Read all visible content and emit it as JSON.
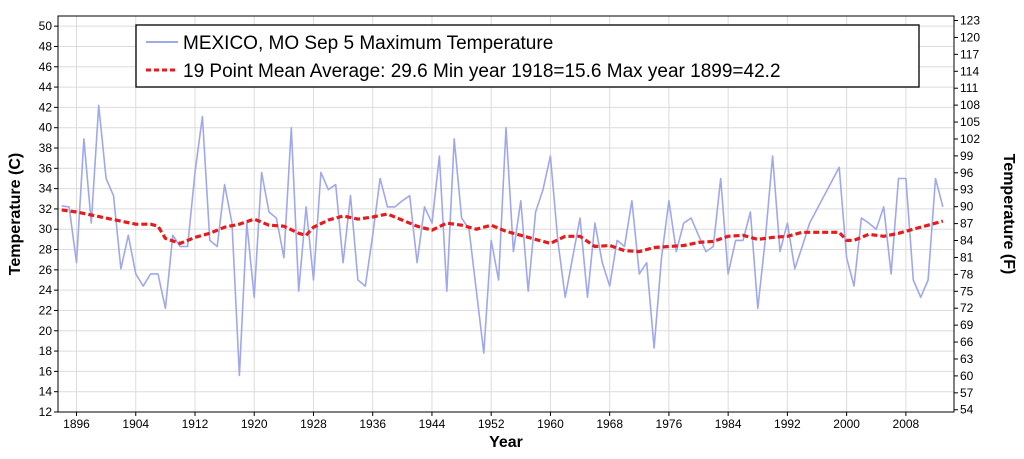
{
  "chart_data": {
    "type": "line",
    "legend_position": "top",
    "legend": {
      "raw_label": "MEXICO, MO  Sep 5  Maximum Temperature",
      "mean_label": "19 Point Mean  Average: 29.6  Min year 1918=15.6  Max year 1899=42.2"
    },
    "xlabel": "Year",
    "ylabel_left": "Temperature (C)",
    "ylabel_right": "Temperature (F)",
    "xlim": [
      1893.5,
      2014.5
    ],
    "ylim": [
      12,
      51
    ],
    "grid": true,
    "x_ticks": [
      "1896",
      "1904",
      "1912",
      "1920",
      "1928",
      "1936",
      "1944",
      "1952",
      "1960",
      "1968",
      "1976",
      "1984",
      "1992",
      "2000",
      "2008"
    ],
    "y_ticks_left": [
      "12",
      "14",
      "16",
      "18",
      "20",
      "22",
      "24",
      "26",
      "28",
      "30",
      "32",
      "34",
      "36",
      "38",
      "40",
      "42",
      "44",
      "46",
      "48",
      "50"
    ],
    "y_ticks_right": [
      "54",
      "57",
      "60",
      "63",
      "66",
      "69",
      "72",
      "75",
      "78",
      "81",
      "84",
      "87",
      "90",
      "93",
      "96",
      "99",
      "102",
      "105",
      "108",
      "111",
      "114",
      "117",
      "120",
      "123"
    ],
    "colors": {
      "raw": "#a0a8ec",
      "mean": "#e61c1c",
      "grid": "#dcdcdc"
    },
    "series": [
      {
        "name": "MEXICO, MO  Sep 5  Maximum Temperature",
        "points": [
          [
            1894,
            32.3
          ],
          [
            1895,
            32.2
          ],
          [
            1896,
            26.7
          ],
          [
            1897,
            38.9
          ],
          [
            1898,
            30.6
          ],
          [
            1899,
            42.2
          ],
          [
            1900,
            35.0
          ],
          [
            1901,
            33.3
          ],
          [
            1902,
            26.1
          ],
          [
            1903,
            29.4
          ],
          [
            1904,
            25.6
          ],
          [
            1905,
            24.4
          ],
          [
            1906,
            25.6
          ],
          [
            1907,
            25.6
          ],
          [
            1908,
            22.2
          ],
          [
            1909,
            29.4
          ],
          [
            1910,
            28.3
          ],
          [
            1911,
            28.3
          ],
          [
            1912,
            35.6
          ],
          [
            1913,
            41.1
          ],
          [
            1914,
            28.9
          ],
          [
            1915,
            28.3
          ],
          [
            1916,
            34.4
          ],
          [
            1917,
            30.6
          ],
          [
            1918,
            15.6
          ],
          [
            1919,
            30.6
          ],
          [
            1920,
            23.3
          ],
          [
            1921,
            35.6
          ],
          [
            1922,
            31.7
          ],
          [
            1923,
            31.1
          ],
          [
            1924,
            27.2
          ],
          [
            1925,
            40.0
          ],
          [
            1926,
            23.9
          ],
          [
            1927,
            32.2
          ],
          [
            1928,
            25.0
          ],
          [
            1929,
            35.6
          ],
          [
            1930,
            33.9
          ],
          [
            1931,
            34.4
          ],
          [
            1932,
            26.7
          ],
          [
            1933,
            33.3
          ],
          [
            1934,
            25.0
          ],
          [
            1935,
            24.4
          ],
          [
            1936,
            29.4
          ],
          [
            1937,
            35.0
          ],
          [
            1938,
            32.2
          ],
          [
            1939,
            32.2
          ],
          [
            1940,
            32.8
          ],
          [
            1941,
            33.3
          ],
          [
            1942,
            26.7
          ],
          [
            1943,
            32.2
          ],
          [
            1944,
            30.6
          ],
          [
            1945,
            37.2
          ],
          [
            1946,
            23.9
          ],
          [
            1947,
            38.9
          ],
          [
            1948,
            31.1
          ],
          [
            1949,
            30.0
          ],
          [
            1950,
            23.9
          ],
          [
            1951,
            17.8
          ],
          [
            1952,
            28.9
          ],
          [
            1953,
            25.0
          ],
          [
            1954,
            40.0
          ],
          [
            1955,
            27.8
          ],
          [
            1956,
            32.8
          ],
          [
            1957,
            23.9
          ],
          [
            1958,
            31.7
          ],
          [
            1959,
            33.9
          ],
          [
            1960,
            37.2
          ],
          [
            1961,
            28.9
          ],
          [
            1962,
            23.3
          ],
          [
            1963,
            27.2
          ],
          [
            1964,
            31.1
          ],
          [
            1965,
            23.3
          ],
          [
            1966,
            30.6
          ],
          [
            1967,
            26.7
          ],
          [
            1968,
            24.4
          ],
          [
            1969,
            28.9
          ],
          [
            1970,
            28.3
          ],
          [
            1971,
            32.8
          ],
          [
            1972,
            25.6
          ],
          [
            1973,
            26.7
          ],
          [
            1974,
            18.3
          ],
          [
            1975,
            27.2
          ],
          [
            1976,
            32.8
          ],
          [
            1977,
            27.8
          ],
          [
            1978,
            30.6
          ],
          [
            1979,
            31.1
          ],
          [
            1980,
            29.4
          ],
          [
            1981,
            27.8
          ],
          [
            1982,
            28.3
          ],
          [
            1983,
            35.0
          ],
          [
            1984,
            25.6
          ],
          [
            1985,
            28.9
          ],
          [
            1986,
            28.9
          ],
          [
            1987,
            31.7
          ],
          [
            1988,
            22.2
          ],
          [
            1989,
            28.9
          ],
          [
            1990,
            37.2
          ],
          [
            1991,
            27.8
          ],
          [
            1992,
            30.6
          ],
          [
            1993,
            26.1
          ],
          [
            1994,
            28.3
          ],
          [
            1995,
            30.6
          ],
          [
            1999,
            36.1
          ],
          [
            2000,
            27.2
          ],
          [
            2001,
            24.4
          ],
          [
            2002,
            31.1
          ],
          [
            2003,
            30.6
          ],
          [
            2004,
            30.0
          ],
          [
            2005,
            32.2
          ],
          [
            2006,
            25.6
          ],
          [
            2007,
            35.0
          ],
          [
            2008,
            35.0
          ],
          [
            2009,
            25.0
          ],
          [
            2010,
            23.3
          ],
          [
            2011,
            25.0
          ],
          [
            2012,
            35.0
          ],
          [
            2013,
            32.2
          ]
        ]
      },
      {
        "name": "19 Point Mean",
        "points": [
          [
            1894,
            31.9
          ],
          [
            1896,
            31.7
          ],
          [
            1898,
            31.4
          ],
          [
            1900,
            31.1
          ],
          [
            1902,
            30.8
          ],
          [
            1904,
            30.5
          ],
          [
            1906,
            30.5
          ],
          [
            1907,
            30.3
          ],
          [
            1908,
            29.1
          ],
          [
            1910,
            28.6
          ],
          [
            1912,
            29.2
          ],
          [
            1914,
            29.6
          ],
          [
            1916,
            30.2
          ],
          [
            1918,
            30.5
          ],
          [
            1920,
            31.0
          ],
          [
            1922,
            30.4
          ],
          [
            1924,
            30.3
          ],
          [
            1926,
            29.6
          ],
          [
            1927,
            29.4
          ],
          [
            1928,
            30.2
          ],
          [
            1930,
            30.9
          ],
          [
            1932,
            31.3
          ],
          [
            1934,
            31.0
          ],
          [
            1936,
            31.2
          ],
          [
            1938,
            31.5
          ],
          [
            1940,
            30.9
          ],
          [
            1942,
            30.3
          ],
          [
            1944,
            29.9
          ],
          [
            1946,
            30.6
          ],
          [
            1948,
            30.4
          ],
          [
            1950,
            30.0
          ],
          [
            1952,
            30.4
          ],
          [
            1954,
            29.8
          ],
          [
            1956,
            29.4
          ],
          [
            1958,
            29.0
          ],
          [
            1960,
            28.6
          ],
          [
            1962,
            29.3
          ],
          [
            1964,
            29.3
          ],
          [
            1966,
            28.3
          ],
          [
            1968,
            28.4
          ],
          [
            1970,
            27.9
          ],
          [
            1972,
            27.8
          ],
          [
            1974,
            28.2
          ],
          [
            1976,
            28.3
          ],
          [
            1978,
            28.4
          ],
          [
            1980,
            28.7
          ],
          [
            1982,
            28.8
          ],
          [
            1984,
            29.3
          ],
          [
            1986,
            29.4
          ],
          [
            1988,
            29.0
          ],
          [
            1990,
            29.2
          ],
          [
            1992,
            29.3
          ],
          [
            1994,
            29.7
          ],
          [
            1996,
            29.7
          ],
          [
            1999,
            29.7
          ],
          [
            2000,
            28.9
          ],
          [
            2001,
            28.9
          ],
          [
            2003,
            29.5
          ],
          [
            2005,
            29.3
          ],
          [
            2007,
            29.6
          ],
          [
            2009,
            30.0
          ],
          [
            2011,
            30.4
          ],
          [
            2013,
            30.8
          ]
        ]
      }
    ]
  }
}
